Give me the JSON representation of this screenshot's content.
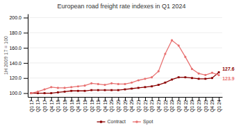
{
  "chart_data": {
    "type": "line",
    "title": "European road freight rate indexes in Q1 2024",
    "ylabel": "1H 2009 17 = 100",
    "categories": [
      "Q1 17",
      "Q2 17",
      "Q3 17",
      "Q4 17",
      "Q1 18",
      "Q2 18",
      "Q3 18",
      "Q4 18",
      "Q1 19",
      "Q2 19",
      "Q3 19",
      "Q4 19",
      "Q1 20",
      "Q2 20",
      "Q3 20",
      "Q4 20",
      "Q1 21",
      "Q2 21",
      "Q3 21",
      "Q4 21",
      "Q1 22",
      "Q2 22",
      "Q3 22",
      "Q4 22",
      "Q1 23",
      "Q2 23",
      "Q3 23",
      "Q4 23",
      "Q1 24"
    ],
    "series": [
      {
        "name": "Contract",
        "color": "#8B0000",
        "marker": "square",
        "values": [
          100,
          100,
          100,
          100,
          101,
          102,
          103,
          103,
          103,
          104,
          104,
          104,
          104,
          104,
          105,
          106,
          107,
          108,
          109,
          111,
          114,
          118,
          121,
          121,
          120,
          119,
          119,
          120,
          127.6
        ]
      },
      {
        "name": "Spot",
        "color": "#E87070",
        "marker": "circle",
        "values": [
          100,
          102,
          105,
          108,
          107,
          107,
          108,
          109,
          110,
          113,
          112,
          111,
          113,
          112,
          112,
          114,
          117,
          119,
          121,
          129,
          152,
          170,
          163,
          148,
          132,
          126,
          124,
          127,
          123.9
        ]
      }
    ],
    "annotations": [
      {
        "text": "127.6",
        "x": "Q1 24",
        "y": 127.6,
        "color": "#8B0000"
      },
      {
        "text": "123.9",
        "x": "Q1 24",
        "y": 123.9,
        "color": "#E87070"
      }
    ],
    "ylim": [
      95,
      205
    ],
    "yticks": [
      {
        "value": 100,
        "label": "100.0"
      },
      {
        "value": 120,
        "label": "120.0"
      },
      {
        "value": 140,
        "label": "140.0"
      },
      {
        "value": 160,
        "label": "160.0"
      },
      {
        "value": 180,
        "label": "180.0"
      },
      {
        "value": 200,
        "label": "200.0"
      }
    ],
    "grid": true,
    "legend": "bottom"
  }
}
